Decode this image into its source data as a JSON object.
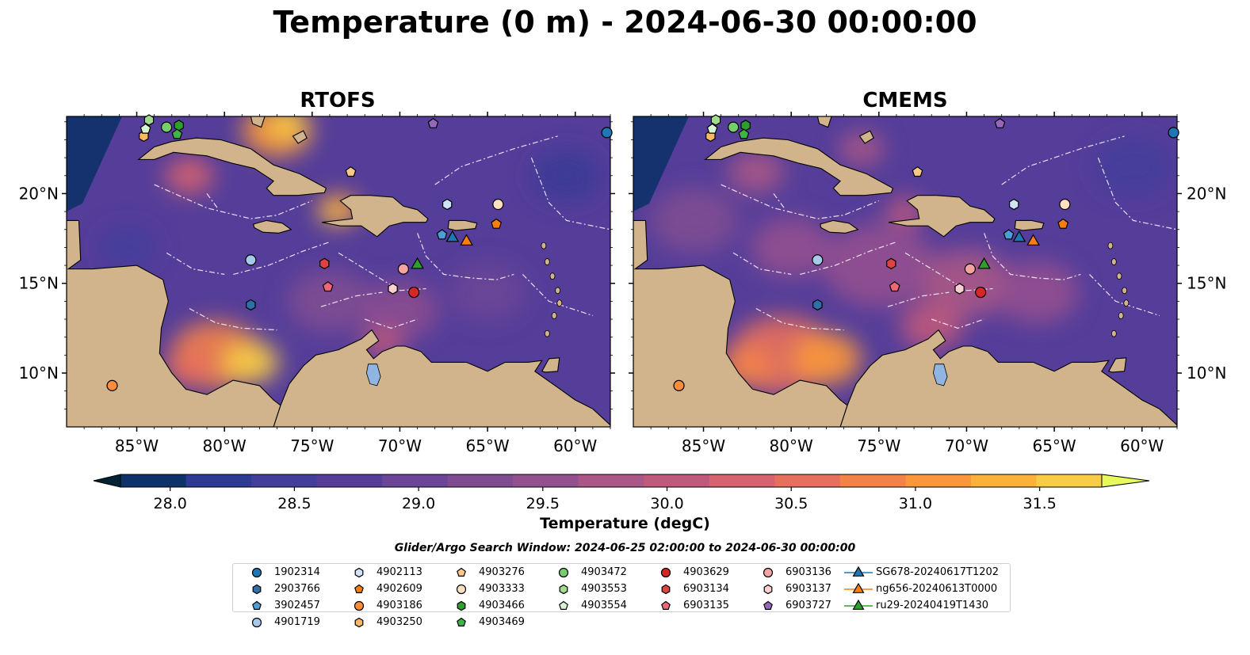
{
  "title": "Temperature (0 m) - 2024-06-30 00:00:00",
  "panels": [
    {
      "title": "RTOFS"
    },
    {
      "title": "CMEMS"
    }
  ],
  "axes": {
    "lon_ticks": [
      "85°W",
      "80°W",
      "75°W",
      "70°W",
      "65°W",
      "60°W"
    ],
    "lat_ticks": [
      "20°N",
      "15°N",
      "10°N"
    ]
  },
  "colorbar": {
    "label": "Temperature (degC)",
    "tick_labels": [
      "28.0",
      "28.5",
      "29.0",
      "29.5",
      "30.0",
      "30.5",
      "31.0",
      "31.5"
    ],
    "colors": [
      "#032333",
      "#0f3169",
      "#2e3a93",
      "#423e9a",
      "#553e9a",
      "#6b4596",
      "#7f4c92",
      "#93508f",
      "#aa5686",
      "#c05a7c",
      "#d6636f",
      "#e76f5d",
      "#f38249",
      "#f9973a",
      "#fbb13a",
      "#f7cd45",
      "#e8fa5b"
    ]
  },
  "search_window": "Glider/Argo Search Window: 2024-06-25 02:00:00 to 2024-06-30 00:00:00",
  "map_colors": {
    "land": "#d2b48c",
    "ocean_base": "#553e9a",
    "lake": "#8fb5e0"
  },
  "legend": [
    {
      "label": "1902314",
      "marker": "circle",
      "color": "#1f77b4"
    },
    {
      "label": "2903766",
      "marker": "hexagon",
      "color": "#3070a8"
    },
    {
      "label": "3902457",
      "marker": "pentagon",
      "color": "#4b9fd6"
    },
    {
      "label": "4901719",
      "marker": "circle",
      "color": "#a6c9ec"
    },
    {
      "label": "4902113",
      "marker": "hexagon",
      "color": "#cfe4f7"
    },
    {
      "label": "4902609",
      "marker": "pentagon",
      "color": "#f57f0e"
    },
    {
      "label": "4903186",
      "marker": "circle",
      "color": "#fd8d3c"
    },
    {
      "label": "4903250",
      "marker": "hexagon",
      "color": "#fdb863"
    },
    {
      "label": "4903276",
      "marker": "pentagon",
      "color": "#fdc98a"
    },
    {
      "label": "4903333",
      "marker": "circle",
      "color": "#fee0c2"
    },
    {
      "label": "4903466",
      "marker": "hexagon",
      "color": "#2ca02c"
    },
    {
      "label": "4903469",
      "marker": "pentagon",
      "color": "#40b348"
    },
    {
      "label": "4903472",
      "marker": "circle",
      "color": "#77cc6e"
    },
    {
      "label": "4903553",
      "marker": "hexagon",
      "color": "#a1dc8e"
    },
    {
      "label": "4903554",
      "marker": "pentagon",
      "color": "#d6f5d0"
    },
    {
      "label": "4903629",
      "marker": "circle",
      "color": "#d62728"
    },
    {
      "label": "6903134",
      "marker": "hexagon",
      "color": "#df4444"
    },
    {
      "label": "6903135",
      "marker": "pentagon",
      "color": "#ee6677"
    },
    {
      "label": "6903136",
      "marker": "circle",
      "color": "#f4a2a2"
    },
    {
      "label": "6903137",
      "marker": "hexagon",
      "color": "#fbd0d0"
    },
    {
      "label": "6903727",
      "marker": "pentagon",
      "color": "#9467bd"
    },
    {
      "label": "SG678-20240617T1202",
      "marker": "triangle-line",
      "color": "#1f77b4"
    },
    {
      "label": "ng656-20240613T0000",
      "marker": "triangle-line",
      "color": "#ff7f0e"
    },
    {
      "label": "ru29-20240419T1430",
      "marker": "triangle-line",
      "color": "#2ca02c"
    }
  ],
  "platforms": [
    {
      "id": "1902314",
      "lon": -58.2,
      "lat": 23.4
    },
    {
      "id": "2903766",
      "lon": -78.5,
      "lat": 13.8
    },
    {
      "id": "3902457",
      "lon": -67.6,
      "lat": 17.7
    },
    {
      "id": "4901719",
      "lon": -78.5,
      "lat": 16.3
    },
    {
      "id": "4902113",
      "lon": -67.3,
      "lat": 19.4
    },
    {
      "id": "4902609",
      "lon": -64.5,
      "lat": 18.3
    },
    {
      "id": "4903186",
      "lon": -86.4,
      "lat": 9.3
    },
    {
      "id": "4903250",
      "lon": -84.6,
      "lat": 23.2
    },
    {
      "id": "4903276",
      "lon": -72.8,
      "lat": 21.2
    },
    {
      "id": "4903333",
      "lon": -64.4,
      "lat": 19.4
    },
    {
      "id": "4903466",
      "lon": -82.6,
      "lat": 23.8
    },
    {
      "id": "4903469",
      "lon": -82.7,
      "lat": 23.3
    },
    {
      "id": "4903472",
      "lon": -83.3,
      "lat": 23.7
    },
    {
      "id": "4903553",
      "lon": -84.3,
      "lat": 24.1
    },
    {
      "id": "4903554",
      "lon": -84.5,
      "lat": 23.6
    },
    {
      "id": "4903629",
      "lon": -69.2,
      "lat": 14.5
    },
    {
      "id": "6903134",
      "lon": -74.3,
      "lat": 16.1
    },
    {
      "id": "6903135",
      "lon": -74.1,
      "lat": 14.8
    },
    {
      "id": "6903136",
      "lon": -69.8,
      "lat": 15.8
    },
    {
      "id": "6903137",
      "lon": -70.4,
      "lat": 14.7
    },
    {
      "id": "6903727",
      "lon": -68.1,
      "lat": 23.9
    }
  ],
  "gliders": [
    {
      "id": "SG678-20240617T1202",
      "lon": -67.0,
      "lat": 17.6
    },
    {
      "id": "ng656-20240613T0000",
      "lon": -66.2,
      "lat": 17.4
    },
    {
      "id": "ru29-20240419T1430",
      "lon": -69.0,
      "lat": 16.1
    }
  ]
}
